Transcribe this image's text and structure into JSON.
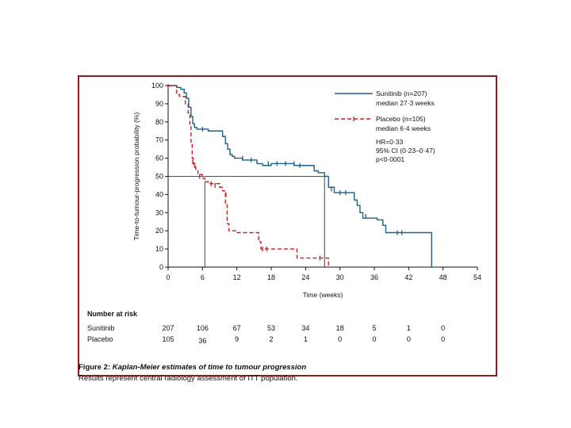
{
  "chart_data": {
    "type": "line",
    "subtype": "kaplan-meier",
    "xlabel": "Time (weeks)",
    "ylabel": "Time-to-tumour-progression probability (%)",
    "xlim": [
      0,
      54
    ],
    "ylim": [
      0,
      100
    ],
    "xticks": [
      0,
      6,
      12,
      18,
      24,
      30,
      36,
      42,
      48,
      54
    ],
    "yticks": [
      0,
      10,
      20,
      30,
      40,
      50,
      60,
      70,
      80,
      90,
      100
    ],
    "median_line_y": 50,
    "series": [
      {
        "name": "Sunitinib",
        "legend_line1": "Sunitinib (n=207)",
        "legend_line2": "median 27·3 weeks",
        "color": "#1f5f8b",
        "dash": "",
        "median_x": 27.3,
        "x": [
          0,
          1.5,
          2.2,
          2.8,
          3.2,
          3.6,
          4.0,
          4.3,
          4.6,
          5.0,
          7.0,
          9.5,
          10.0,
          10.4,
          10.8,
          11.2,
          11.6,
          13.0,
          15.5,
          16.5,
          18.0,
          22.0,
          25.5,
          26.2,
          27.3,
          28.0,
          29.0,
          32.5,
          33.0,
          33.5,
          34.0,
          36.5,
          37.5,
          38.0,
          46.0,
          46.0
        ],
        "y": [
          100,
          99,
          98,
          96,
          93,
          88,
          83,
          79,
          77,
          76,
          75,
          72,
          68,
          65,
          62,
          61,
          60,
          59,
          57,
          56,
          57,
          56,
          53,
          52,
          50,
          44,
          41,
          37,
          34,
          30,
          27,
          26,
          23,
          19,
          19,
          0
        ],
        "censored": [
          [
            6,
            76
          ],
          [
            13,
            60
          ],
          [
            14.5,
            59
          ],
          [
            17.5,
            57
          ],
          [
            19,
            57
          ],
          [
            20.5,
            57
          ],
          [
            22,
            57
          ],
          [
            23,
            56
          ],
          [
            28.5,
            43
          ],
          [
            30,
            41
          ],
          [
            31,
            41
          ],
          [
            34.5,
            28
          ],
          [
            40,
            19
          ],
          [
            40.8,
            19
          ]
        ]
      },
      {
        "name": "Placebo",
        "legend_line1": "Placebo (n=105)",
        "legend_line2": "median 6·4 weeks",
        "color": "#cc2020",
        "dash": "5,3",
        "median_x": 6.4,
        "x": [
          0,
          1.5,
          2.0,
          3.0,
          3.5,
          3.8,
          4.0,
          4.2,
          4.4,
          4.8,
          5.2,
          6.0,
          6.4,
          7.0,
          9.0,
          9.5,
          10.0,
          10.3,
          10.6,
          12.0,
          15.0,
          15.8,
          16.2,
          18.0,
          22.0,
          22.5,
          27.5,
          28.0
        ],
        "y": [
          100,
          95,
          94,
          90,
          85,
          78,
          68,
          60,
          57,
          54,
          51,
          49,
          47,
          46,
          44,
          42,
          35,
          24,
          20,
          19,
          19,
          14,
          10,
          10,
          10,
          5,
          5,
          0
        ],
        "censored": [
          [
            4.3,
            58
          ],
          [
            4.6,
            56
          ],
          [
            5.5,
            50
          ],
          [
            7.5,
            46
          ],
          [
            8.2,
            45
          ],
          [
            10.1,
            40
          ],
          [
            16.5,
            10
          ],
          [
            17.2,
            10
          ],
          [
            26.5,
            5
          ]
        ]
      }
    ],
    "annotations": [
      "HR=0·33",
      "95% CI (0·23–0·47)",
      "p<0·0001"
    ],
    "number_at_risk": {
      "title": "Number at risk",
      "times": [
        0,
        6,
        12,
        18,
        24,
        30,
        36,
        42,
        48
      ],
      "rows": [
        {
          "label": "Sunitinib",
          "values": [
            "207",
            "106",
            "67",
            "53",
            "34",
            "18",
            "5",
            "1",
            "0"
          ]
        },
        {
          "label": "Placebo",
          "values": [
            "105",
            "36",
            "9",
            "2",
            "1",
            "0",
            "0",
            "0",
            "0"
          ]
        }
      ]
    }
  },
  "caption": {
    "figure_label": "Figure 2:",
    "title": " Kaplan-Meier estimates of time to tumour progression",
    "subtitle": "Results represent central radiology assessment of ITT population."
  }
}
